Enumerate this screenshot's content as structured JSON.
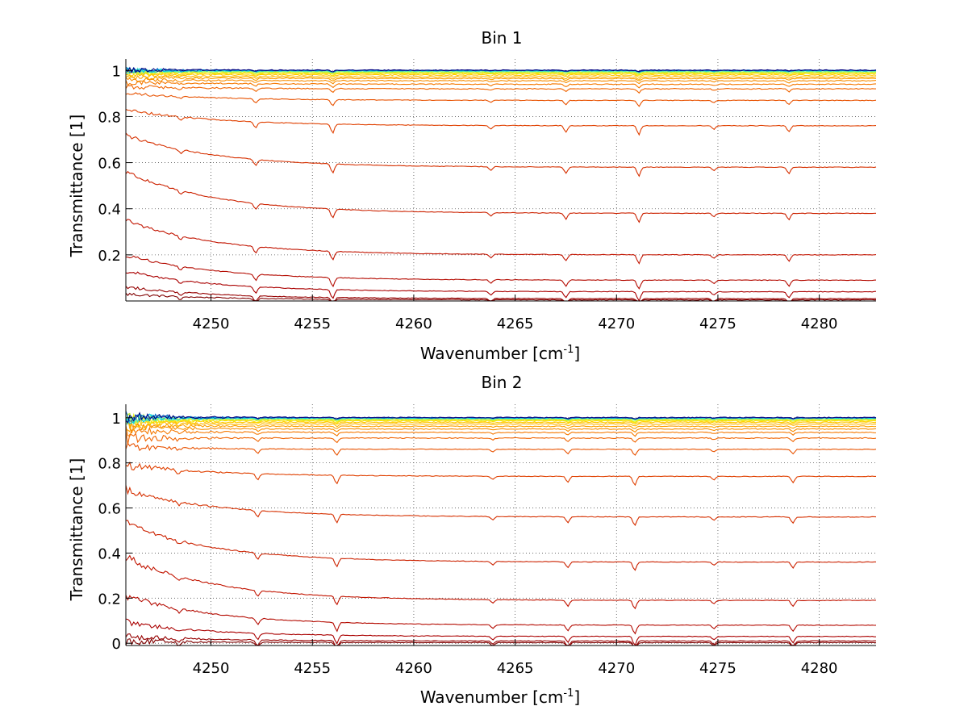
{
  "chart_data": [
    {
      "type": "line",
      "title": "Bin 1",
      "xlabel": "Wavenumber [cm",
      "xlabel_sup": "-1",
      "xlabel_end": "]",
      "ylabel": "Transmittance [1]",
      "xlim": [
        4245.8,
        4282.8
      ],
      "ylim": [
        0,
        1.05
      ],
      "xticks": [
        4250,
        4255,
        4260,
        4265,
        4270,
        4275,
        4280
      ],
      "xtick_labels": [
        "4250",
        "4255",
        "4260",
        "4265",
        "4270",
        "4275",
        "4280"
      ],
      "yticks": [
        0.2,
        0.4,
        0.6,
        0.8,
        1
      ],
      "ytick_labels": [
        "0.2",
        "0.4",
        "0.6",
        "0.8",
        "1"
      ],
      "grid": true,
      "absorption_lines": [
        4248.5,
        4252.2,
        4256.0,
        4263.8,
        4267.5,
        4271.1,
        4274.8,
        4278.5
      ],
      "series": [
        {
          "color": "#800000",
          "start": 0.03,
          "end": 0.005
        },
        {
          "color": "#960000",
          "start": 0.06,
          "end": 0.01
        },
        {
          "color": "#aa0000",
          "start": 0.13,
          "end": 0.04
        },
        {
          "color": "#b40a00",
          "start": 0.2,
          "end": 0.09
        },
        {
          "color": "#c21400",
          "start": 0.35,
          "end": 0.2
        },
        {
          "color": "#cc2200",
          "start": 0.56,
          "end": 0.38
        },
        {
          "color": "#d63000",
          "start": 0.72,
          "end": 0.58
        },
        {
          "color": "#e04000",
          "start": 0.83,
          "end": 0.76
        },
        {
          "color": "#e85200",
          "start": 0.9,
          "end": 0.87
        },
        {
          "color": "#f06400",
          "start": 0.93,
          "end": 0.92
        },
        {
          "color": "#f57800",
          "start": 0.95,
          "end": 0.94
        },
        {
          "color": "#f88c00",
          "start": 0.96,
          "end": 0.955
        },
        {
          "color": "#fba000",
          "start": 0.97,
          "end": 0.965
        },
        {
          "color": "#fdb400",
          "start": 0.978,
          "end": 0.972
        },
        {
          "color": "#ffc800",
          "start": 0.984,
          "end": 0.98
        },
        {
          "color": "#ffdc00",
          "start": 0.988,
          "end": 0.986
        },
        {
          "color": "#e6ee10",
          "start": 0.992,
          "end": 0.99
        },
        {
          "color": "#c0f040",
          "start": 0.995,
          "end": 0.993
        },
        {
          "color": "#80f080",
          "start": 0.997,
          "end": 0.996
        },
        {
          "color": "#40e0c0",
          "start": 0.999,
          "end": 0.998
        },
        {
          "color": "#00c8f0",
          "start": 1.0,
          "end": 0.999
        },
        {
          "color": "#0060c0",
          "start": 1.002,
          "end": 1.0
        },
        {
          "color": "#000080",
          "start": 1.003,
          "end": 1.001
        }
      ]
    },
    {
      "type": "line",
      "title": "Bin 2",
      "xlabel": "Wavenumber [cm",
      "xlabel_sup": "-1",
      "xlabel_end": "]",
      "ylabel": "Transmittance [1]",
      "xlim": [
        4245.8,
        4282.8
      ],
      "ylim": [
        -0.01,
        1.06
      ],
      "xticks": [
        4250,
        4255,
        4260,
        4265,
        4270,
        4275,
        4280
      ],
      "xtick_labels": [
        "4250",
        "4255",
        "4260",
        "4265",
        "4270",
        "4275",
        "4280"
      ],
      "yticks": [
        0,
        0.2,
        0.4,
        0.6,
        0.8,
        1
      ],
      "ytick_labels": [
        "0",
        "0.2",
        "0.4",
        "0.6",
        "0.8",
        "1"
      ],
      "grid": true,
      "absorption_lines": [
        4248.4,
        4252.3,
        4256.2,
        4263.9,
        4267.6,
        4270.9,
        4274.8,
        4278.7
      ],
      "series": [
        {
          "color": "#800000",
          "start": 0.01,
          "end": 0.003
        },
        {
          "color": "#960000",
          "start": 0.03,
          "end": 0.01
        },
        {
          "color": "#aa0000",
          "start": 0.09,
          "end": 0.03
        },
        {
          "color": "#b40a00",
          "start": 0.21,
          "end": 0.08
        },
        {
          "color": "#c21400",
          "start": 0.38,
          "end": 0.19
        },
        {
          "color": "#cc2200",
          "start": 0.53,
          "end": 0.36
        },
        {
          "color": "#d63000",
          "start": 0.68,
          "end": 0.56
        },
        {
          "color": "#e04000",
          "start": 0.79,
          "end": 0.74
        },
        {
          "color": "#e85200",
          "start": 0.87,
          "end": 0.86
        },
        {
          "color": "#f06400",
          "start": 0.91,
          "end": 0.91
        },
        {
          "color": "#f57800",
          "start": 0.94,
          "end": 0.935
        },
        {
          "color": "#f88c00",
          "start": 0.955,
          "end": 0.95
        },
        {
          "color": "#fba000",
          "start": 0.965,
          "end": 0.962
        },
        {
          "color": "#fdb400",
          "start": 0.975,
          "end": 0.972
        },
        {
          "color": "#ffc800",
          "start": 0.982,
          "end": 0.98
        },
        {
          "color": "#ffdc00",
          "start": 0.988,
          "end": 0.986
        },
        {
          "color": "#e6ee10",
          "start": 0.992,
          "end": 0.99
        },
        {
          "color": "#c0f040",
          "start": 0.995,
          "end": 0.993
        },
        {
          "color": "#80f080",
          "start": 0.997,
          "end": 0.996
        },
        {
          "color": "#40e0c0",
          "start": 0.999,
          "end": 0.998
        },
        {
          "color": "#00c8f0",
          "start": 1.001,
          "end": 0.999
        },
        {
          "color": "#0060c0",
          "start": 1.003,
          "end": 1.0
        },
        {
          "color": "#000080",
          "start": 1.004,
          "end": 1.001
        }
      ]
    }
  ]
}
